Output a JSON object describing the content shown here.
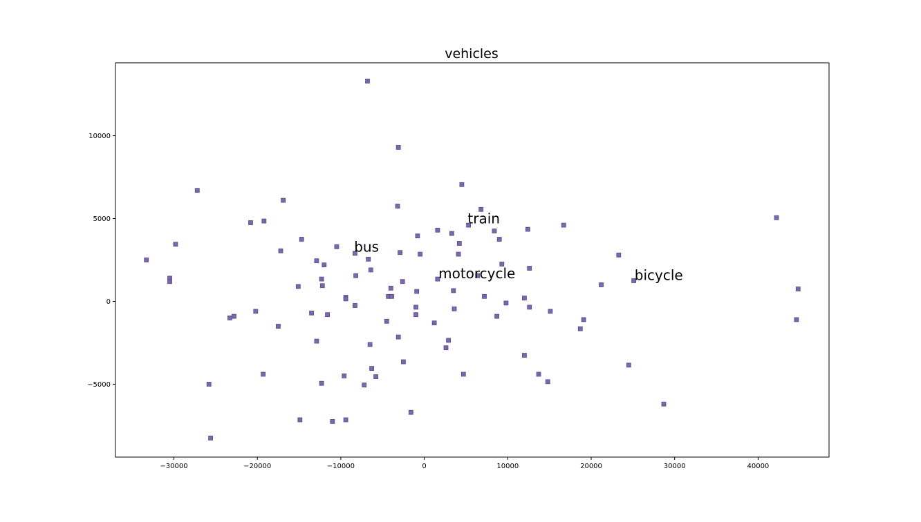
{
  "chart_data": {
    "type": "scatter",
    "title": "vehicles",
    "xlabel": "",
    "ylabel": "",
    "xlim": [
      -37000,
      48500
    ],
    "ylim": [
      -9400,
      14400
    ],
    "xticks": [
      -30000,
      -20000,
      -10000,
      0,
      10000,
      20000,
      30000,
      40000
    ],
    "xtick_labels": [
      "−30000",
      "−20000",
      "−10000",
      "0",
      "10000",
      "20000",
      "30000",
      "40000"
    ],
    "yticks": [
      -5000,
      0,
      5000,
      10000
    ],
    "ytick_labels": [
      "−5000",
      "0",
      "5000",
      "10000"
    ],
    "grid": false,
    "marker_color": "#7b68a8",
    "marker_edge_color": "#5a4d8c",
    "annotations": [
      {
        "text": "train",
        "x": 5200,
        "y": 4700
      },
      {
        "text": "bus",
        "x": -8400,
        "y": 3000
      },
      {
        "text": "motorcycle",
        "x": 1700,
        "y": 1400
      },
      {
        "text": "bicycle",
        "x": 25200,
        "y": 1300
      }
    ],
    "points": [
      [
        -6800,
        13300
      ],
      [
        -3100,
        9300
      ],
      [
        4500,
        7050
      ],
      [
        -27200,
        6700
      ],
      [
        -16900,
        6100
      ],
      [
        6800,
        5550
      ],
      [
        -3200,
        5750
      ],
      [
        42200,
        5050
      ],
      [
        -19200,
        4850
      ],
      [
        -20800,
        4750
      ],
      [
        16700,
        4600
      ],
      [
        5300,
        4600
      ],
      [
        1600,
        4300
      ],
      [
        8400,
        4250
      ],
      [
        12400,
        4350
      ],
      [
        3300,
        4100
      ],
      [
        -800,
        3950
      ],
      [
        -14700,
        3750
      ],
      [
        9000,
        3750
      ],
      [
        4200,
        3500
      ],
      [
        -29800,
        3450
      ],
      [
        -10500,
        3300
      ],
      [
        -17200,
        3050
      ],
      [
        -8300,
        2900
      ],
      [
        -2900,
        2950
      ],
      [
        -500,
        2850
      ],
      [
        4100,
        2850
      ],
      [
        23300,
        2800
      ],
      [
        -6700,
        2550
      ],
      [
        -33300,
        2500
      ],
      [
        -12900,
        2450
      ],
      [
        -12000,
        2200
      ],
      [
        9300,
        2250
      ],
      [
        12600,
        2000
      ],
      [
        -6400,
        1900
      ],
      [
        -8200,
        1550
      ],
      [
        6400,
        1550
      ],
      [
        -30500,
        1400
      ],
      [
        -12300,
        1350
      ],
      [
        1600,
        1350
      ],
      [
        -30500,
        1200
      ],
      [
        -2600,
        1200
      ],
      [
        25100,
        1250
      ],
      [
        -12200,
        950
      ],
      [
        -15100,
        900
      ],
      [
        21200,
        1000
      ],
      [
        -4000,
        800
      ],
      [
        44800,
        750
      ],
      [
        3500,
        650
      ],
      [
        -900,
        600
      ],
      [
        -4300,
        300
      ],
      [
        -3900,
        300
      ],
      [
        7200,
        300
      ],
      [
        -9400,
        250
      ],
      [
        12000,
        200
      ],
      [
        -9400,
        150
      ],
      [
        9800,
        -100
      ],
      [
        -8300,
        -250
      ],
      [
        -1000,
        -350
      ],
      [
        12600,
        -350
      ],
      [
        3600,
        -450
      ],
      [
        15100,
        -600
      ],
      [
        -20200,
        -600
      ],
      [
        -13500,
        -700
      ],
      [
        -11600,
        -800
      ],
      [
        -1000,
        -800
      ],
      [
        8700,
        -900
      ],
      [
        -22800,
        -900
      ],
      [
        -23300,
        -1000
      ],
      [
        19100,
        -1100
      ],
      [
        44600,
        -1100
      ],
      [
        -4500,
        -1200
      ],
      [
        1200,
        -1300
      ],
      [
        -17500,
        -1500
      ],
      [
        18700,
        -1650
      ],
      [
        -3100,
        -2150
      ],
      [
        -12900,
        -2400
      ],
      [
        2900,
        -2350
      ],
      [
        -6500,
        -2600
      ],
      [
        2600,
        -2800
      ],
      [
        12000,
        -3250
      ],
      [
        -2500,
        -3650
      ],
      [
        24500,
        -3850
      ],
      [
        -6300,
        -4050
      ],
      [
        13700,
        -4400
      ],
      [
        -19300,
        -4400
      ],
      [
        4700,
        -4400
      ],
      [
        -9600,
        -4500
      ],
      [
        -5800,
        -4550
      ],
      [
        14800,
        -4850
      ],
      [
        -12300,
        -4950
      ],
      [
        -25800,
        -5000
      ],
      [
        -7200,
        -5050
      ],
      [
        28700,
        -6200
      ],
      [
        -1600,
        -6700
      ],
      [
        -14900,
        -7150
      ],
      [
        -9400,
        -7150
      ],
      [
        -11000,
        -7250
      ],
      [
        -25600,
        -8250
      ]
    ]
  }
}
